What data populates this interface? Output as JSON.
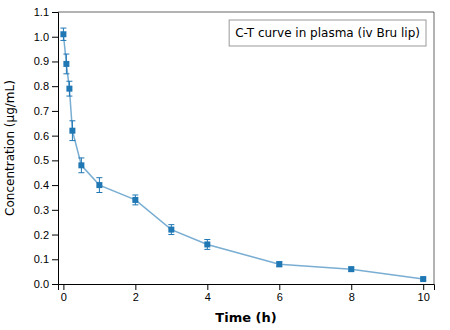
{
  "chart_data": {
    "type": "line",
    "xlabel": "Time (h)",
    "ylabel": "Concentration (μg/mL)",
    "x": [
      0,
      0.083,
      0.167,
      0.25,
      0.5,
      1.0,
      2.0,
      3.0,
      4.0,
      6.0,
      8.0,
      10.0
    ],
    "series": [
      {
        "name": "C-T curve in plasma (iv Bru lip)",
        "marker": "square",
        "values": [
          1.01,
          0.89,
          0.79,
          0.62,
          0.48,
          0.4,
          0.34,
          0.22,
          0.16,
          0.08,
          0.06,
          0.02
        ],
        "yerr": [
          0.025,
          0.04,
          0.03,
          0.04,
          0.03,
          0.03,
          0.02,
          0.02,
          0.02,
          0.01,
          0.008,
          0.005
        ]
      }
    ],
    "xlim": [
      -0.15,
      10.3
    ],
    "ylim": [
      0.0,
      1.1
    ],
    "xticks": [
      0,
      2,
      4,
      6,
      8,
      10
    ],
    "yticks": [
      {
        "value": 0.0,
        "label": "0.0"
      },
      0.1,
      0.2,
      0.3,
      0.4,
      0.5,
      0.6,
      0.7,
      0.8,
      0.9,
      {
        "value": 1.0,
        "label": "1.0"
      },
      1.1
    ],
    "legend": "upper right"
  }
}
